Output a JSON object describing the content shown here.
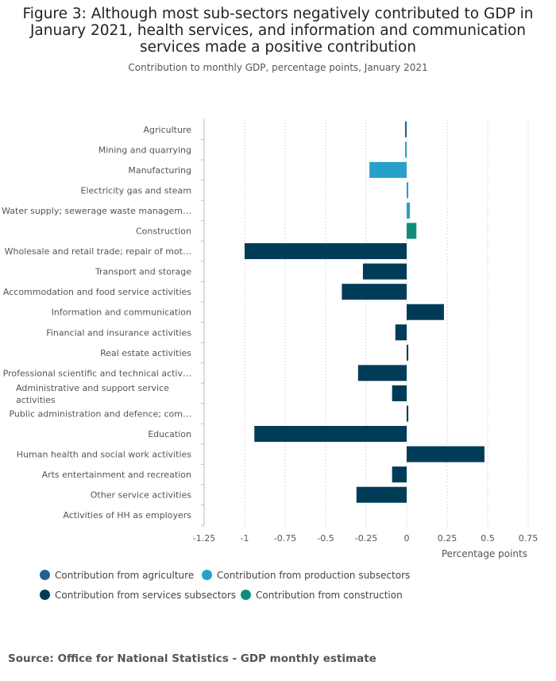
{
  "chart_data": {
    "type": "bar",
    "orientation": "horizontal",
    "title": "Figure 3: Although most sub-sectors negatively contributed to GDP in January 2021, health services, and information and communication services made a positive contribution",
    "subtitle": "Contribution to monthly GDP, percentage points, January 2021",
    "xlabel": "Percentage points",
    "xlim": [
      -1.25,
      0.75
    ],
    "ticks": [
      -1.25,
      -1,
      -0.75,
      -0.5,
      -0.25,
      0,
      0.25,
      0.5,
      0.75
    ],
    "tick_labels": [
      "-1.25",
      "-1",
      "-0.75",
      "-0.5",
      "-0.25",
      "0",
      "0.25",
      "0.5",
      "0.75"
    ],
    "grid": true,
    "categories": [
      {
        "label": "Agriculture",
        "value": -0.01,
        "group": "agriculture"
      },
      {
        "label": "Mining and quarrying",
        "value": -0.01,
        "group": "production"
      },
      {
        "label": "Manufacturing",
        "value": -0.23,
        "group": "production"
      },
      {
        "label": "Electricity gas and steam",
        "value": 0.01,
        "group": "production"
      },
      {
        "label": "Water supply; sewerage waste managem…",
        "value": 0.02,
        "group": "production"
      },
      {
        "label": "Construction",
        "value": 0.06,
        "group": "construction"
      },
      {
        "label": "Wholesale and retail trade; repair of mot…",
        "value": -1.0,
        "group": "services"
      },
      {
        "label": "Transport and storage",
        "value": -0.27,
        "group": "services"
      },
      {
        "label": "Accommodation and food service activities",
        "value": -0.4,
        "group": "services"
      },
      {
        "label": "Information and communication",
        "value": 0.23,
        "group": "services"
      },
      {
        "label": "Financial and insurance activities",
        "value": -0.07,
        "group": "services"
      },
      {
        "label": "Real estate activities",
        "value": 0.01,
        "group": "services"
      },
      {
        "label": "Professional scientific and technical activ…",
        "value": -0.3,
        "group": "services"
      },
      {
        "label": "Administrative and support service activities",
        "value": -0.09,
        "group": "services"
      },
      {
        "label": "Public administration and defence; com…",
        "value": 0.01,
        "group": "services"
      },
      {
        "label": "Education",
        "value": -0.94,
        "group": "services"
      },
      {
        "label": "Human health and social work activities",
        "value": 0.48,
        "group": "services"
      },
      {
        "label": "Arts entertainment and recreation",
        "value": -0.09,
        "group": "services"
      },
      {
        "label": "Other service activities",
        "value": -0.31,
        "group": "services"
      },
      {
        "label": "Activities of HH as employers",
        "value": 0.0,
        "group": "services"
      }
    ],
    "legend": [
      {
        "key": "agriculture",
        "label": "Contribution from agriculture",
        "color": "#206095"
      },
      {
        "key": "production",
        "label": "Contribution from production subsectors",
        "color": "#27a0cc"
      },
      {
        "key": "services",
        "label": "Contribution from services subsectors",
        "color": "#003c57"
      },
      {
        "key": "construction",
        "label": "Contribution from construction",
        "color": "#118c7b"
      }
    ]
  },
  "source": "Source: Office for National Statistics - GDP monthly estimate"
}
